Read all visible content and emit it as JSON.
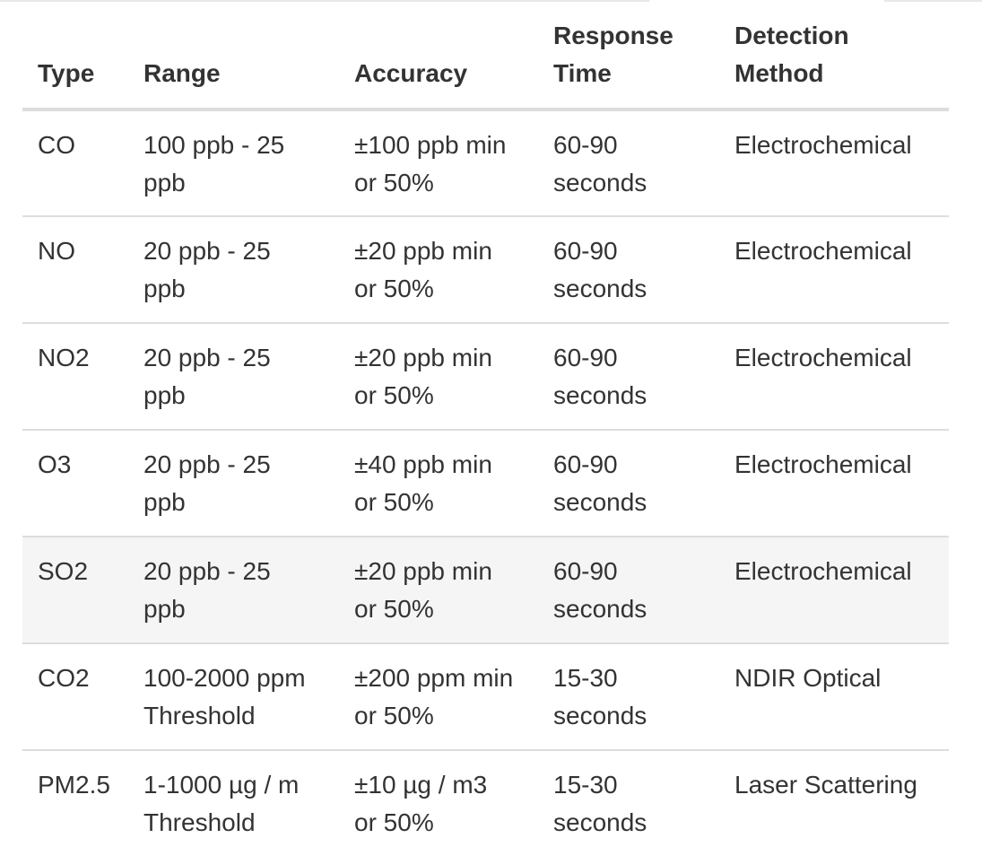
{
  "table": {
    "headers": {
      "type": "Type",
      "range": "Range",
      "accuracy": "Accuracy",
      "response_line1": "Response",
      "response_line2": "Time",
      "method_line1": "Detection",
      "method_line2": "Method"
    },
    "rows": [
      {
        "type": "CO",
        "range_1": "100 ppb - 25",
        "range_2": "ppb",
        "accuracy_1": "±100 ppb min",
        "accuracy_2": "or 50%",
        "response_1": "60-90",
        "response_2": "seconds",
        "method": "Electrochemical"
      },
      {
        "type": "NO",
        "range_1": "20 ppb - 25",
        "range_2": "ppb",
        "accuracy_1": "±20 ppb min",
        "accuracy_2": "or 50%",
        "response_1": "60-90",
        "response_2": "seconds",
        "method": "Electrochemical"
      },
      {
        "type": "NO2",
        "range_1": "20 ppb - 25",
        "range_2": "ppb",
        "accuracy_1": "±20 ppb min",
        "accuracy_2": "or 50%",
        "response_1": "60-90",
        "response_2": "seconds",
        "method": "Electrochemical"
      },
      {
        "type": "O3",
        "range_1": "20 ppb - 25",
        "range_2": "ppb",
        "accuracy_1": "±40 ppb min",
        "accuracy_2": "or 50%",
        "response_1": "60-90",
        "response_2": "seconds",
        "method": "Electrochemical"
      },
      {
        "type": "SO2",
        "range_1": "20 ppb - 25",
        "range_2": "ppb",
        "accuracy_1": "±20 ppb min",
        "accuracy_2": "or 50%",
        "response_1": "60-90",
        "response_2": "seconds",
        "method": "Electrochemical"
      },
      {
        "type": "CO2",
        "range_1": "100-2000 ppm",
        "range_2": "Threshold",
        "accuracy_1": "±200 ppm min",
        "accuracy_2": "or 50%",
        "response_1": "15-30",
        "response_2": "seconds",
        "method": "NDIR Optical"
      },
      {
        "type": "PM2.5",
        "range_1": "1-1000 µg / m",
        "range_2": "Threshold",
        "accuracy_1": "±10 µg / m3",
        "accuracy_2": "or 50%",
        "response_1": "15-30",
        "response_2": "seconds",
        "method": "Laser Scattering"
      }
    ]
  },
  "colors": {
    "text": "#333333",
    "border": "#dddddd",
    "hover_row": "#f5f5f5"
  }
}
